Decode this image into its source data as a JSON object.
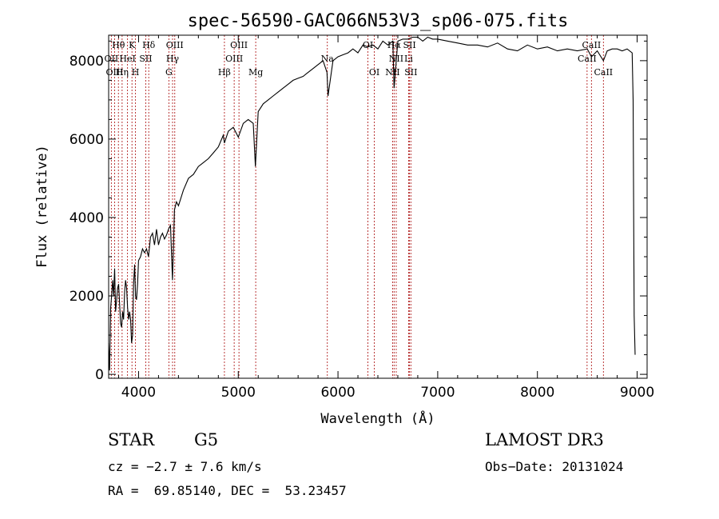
{
  "chart_data": {
    "type": "line",
    "title": "spec-56590-GAC066N53V3_sp06-075.fits",
    "xlabel": "Wavelength (Å)",
    "ylabel": "Flux (relative)",
    "xlim": [
      3700,
      9100
    ],
    "ylim": [
      -100,
      8650
    ],
    "xticks": [
      4000,
      5000,
      6000,
      7000,
      8000,
      9000
    ],
    "yticks": [
      0,
      2000,
      4000,
      6000,
      8000
    ],
    "grid": false,
    "series": [
      {
        "x": [
          3700,
          3710,
          3720,
          3730,
          3740,
          3750,
          3760,
          3770,
          3780,
          3790,
          3800,
          3810,
          3820,
          3830,
          3840,
          3850,
          3860,
          3870,
          3880,
          3890,
          3900,
          3910,
          3920,
          3930,
          3940,
          3950,
          3960,
          3970,
          3980,
          3990,
          4000,
          4020,
          4040,
          4060,
          4080,
          4100,
          4120,
          4140,
          4160,
          4180,
          4200,
          4220,
          4240,
          4260,
          4280,
          4300,
          4320,
          4340,
          4360,
          4380,
          4400,
          4450,
          4500,
          4550,
          4600,
          4650,
          4700,
          4750,
          4800,
          4850,
          4861,
          4900,
          4950,
          5000,
          5050,
          5100,
          5150,
          5172,
          5200,
          5250,
          5300,
          5350,
          5400,
          5450,
          5500,
          5550,
          5600,
          5650,
          5700,
          5750,
          5800,
          5850,
          5890,
          5900,
          5950,
          6000,
          6050,
          6100,
          6150,
          6200,
          6250,
          6300,
          6350,
          6400,
          6450,
          6500,
          6550,
          6563,
          6600,
          6650,
          6700,
          6750,
          6800,
          6850,
          6900,
          6950,
          7000,
          7100,
          7200,
          7300,
          7400,
          7500,
          7600,
          7700,
          7800,
          7900,
          8000,
          8100,
          8200,
          8300,
          8400,
          8500,
          8542,
          8600,
          8662,
          8700,
          8750,
          8800,
          8850,
          8900,
          8950,
          8960,
          8970,
          8980
        ],
        "y": [
          800,
          100,
          1700,
          2000,
          2400,
          2000,
          2700,
          1600,
          1900,
          2200,
          2300,
          1800,
          1300,
          1200,
          1600,
          1400,
          2100,
          2400,
          2200,
          1700,
          1400,
          1600,
          1400,
          800,
          1000,
          2300,
          2800,
          2000,
          1900,
          2300,
          2900,
          3000,
          3200,
          3100,
          3200,
          3000,
          3500,
          3600,
          3300,
          3700,
          3300,
          3500,
          3600,
          3450,
          3550,
          3700,
          3800,
          2400,
          4200,
          4400,
          4300,
          4700,
          5000,
          5100,
          5300,
          5400,
          5500,
          5650,
          5800,
          6100,
          5900,
          6200,
          6300,
          6050,
          6400,
          6500,
          6400,
          5300,
          6700,
          6900,
          7000,
          7100,
          7200,
          7300,
          7400,
          7500,
          7550,
          7600,
          7700,
          7800,
          7900,
          8000,
          7700,
          7100,
          8000,
          8100,
          8150,
          8200,
          8300,
          8200,
          8400,
          8350,
          8400,
          8300,
          8500,
          8400,
          8500,
          7300,
          8500,
          8550,
          8550,
          8600,
          8600,
          8500,
          8600,
          8550,
          8550,
          8500,
          8450,
          8400,
          8400,
          8350,
          8450,
          8300,
          8250,
          8400,
          8300,
          8350,
          8250,
          8300,
          8250,
          8300,
          8100,
          8250,
          8000,
          8250,
          8300,
          8300,
          8250,
          8300,
          8200,
          7000,
          1500,
          500
        ]
      }
    ],
    "lines": [
      {
        "label": "Hθ",
        "wl": 3798,
        "row": 1
      },
      {
        "label": "OII",
        "wl": 3727,
        "row": 2
      },
      {
        "label": "OIII",
        "wl": 3760,
        "row": 3
      },
      {
        "label": "Hη",
        "wl": 3835,
        "row": 3
      },
      {
        "label": "HeI",
        "wl": 3889,
        "row": 2
      },
      {
        "label": "K",
        "wl": 3934,
        "row": 1
      },
      {
        "label": "SII",
        "wl": 4072,
        "row": 2
      },
      {
        "label": "H",
        "wl": 3969,
        "row": 3
      },
      {
        "label": "Hδ",
        "wl": 4102,
        "row": 1
      },
      {
        "label": "OIII",
        "wl": 4363,
        "row": 1
      },
      {
        "label": "Hγ",
        "wl": 4341,
        "row": 2
      },
      {
        "label": "G",
        "wl": 4304,
        "row": 3
      },
      {
        "label": "Hβ",
        "wl": 4861,
        "row": 3
      },
      {
        "label": "OIII",
        "wl": 5007,
        "row": 1
      },
      {
        "label": "OIII",
        "wl": 4959,
        "row": 2
      },
      {
        "label": "Mg",
        "wl": 5175,
        "row": 3
      },
      {
        "label": "Na",
        "wl": 5893,
        "row": 2
      },
      {
        "label": "OI",
        "wl": 6300,
        "row": 1
      },
      {
        "label": "OI",
        "wl": 6364,
        "row": 3
      },
      {
        "label": "Hα",
        "wl": 6563,
        "row": 1
      },
      {
        "label": "NII",
        "wl": 6584,
        "row": 2
      },
      {
        "label": "NII",
        "wl": 6548,
        "row": 3
      },
      {
        "label": "SII",
        "wl": 6717,
        "row": 1
      },
      {
        "label": "Li",
        "wl": 6708,
        "row": 2
      },
      {
        "label": "SII",
        "wl": 6731,
        "row": 3
      },
      {
        "label": "CaII",
        "wl": 8542,
        "row": 1
      },
      {
        "label": "CaII",
        "wl": 8498,
        "row": 2
      },
      {
        "label": "CaII",
        "wl": 8662,
        "row": 3
      }
    ]
  },
  "info": {
    "object_class": "STAR",
    "subclass": "G5",
    "survey": "LAMOST DR3",
    "cz": "cz = −2.7 ± 7.6 km/s",
    "obs_date": "Obs−Date: 20131024",
    "coords": "RA =  69.85140, DEC =  53.23457"
  }
}
